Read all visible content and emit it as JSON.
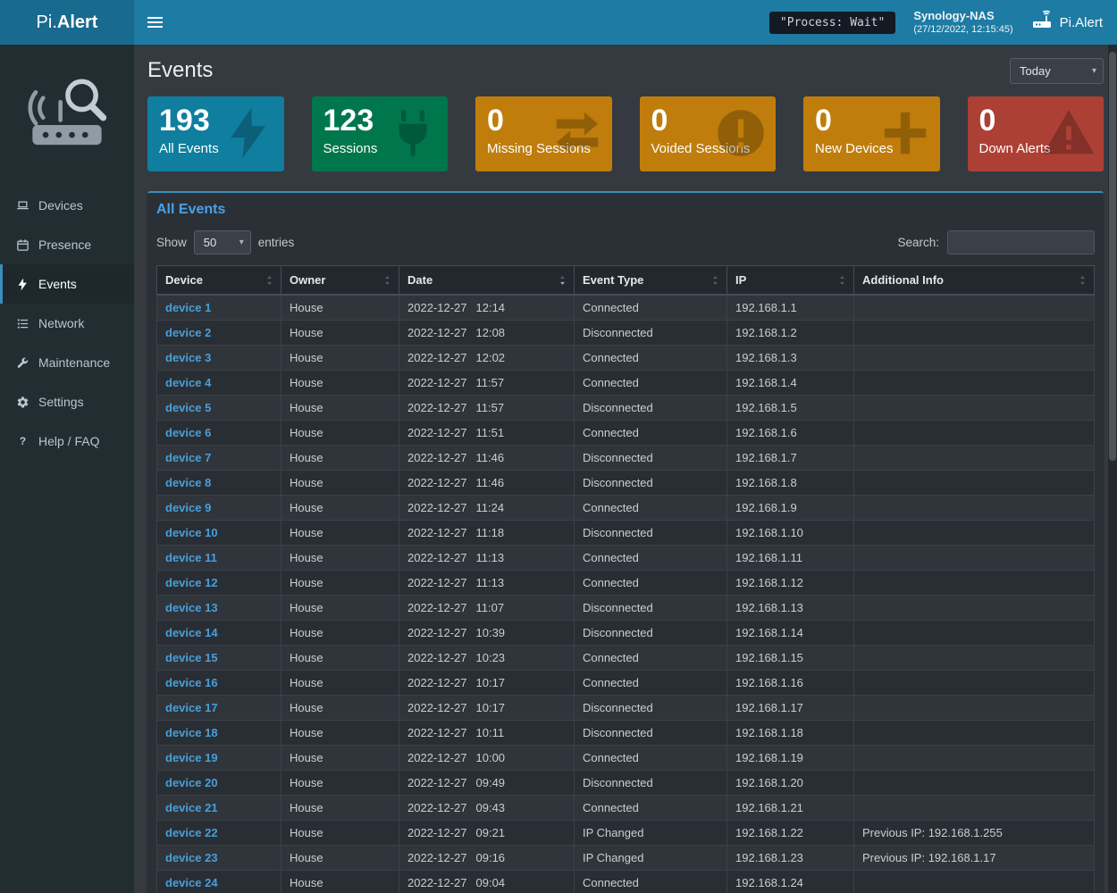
{
  "topbar": {
    "name_light": "Pi.",
    "name_bold": "Alert",
    "process_badge": "\"Process: Wait\"",
    "host_name": "Synology-NAS",
    "host_time": "(27/12/2022, 12:15:45)",
    "right_brand": "Pi.Alert"
  },
  "sidebar": {
    "items": [
      {
        "label": "Devices",
        "icon": "laptop-icon",
        "active": false
      },
      {
        "label": "Presence",
        "icon": "calendar-icon",
        "active": false
      },
      {
        "label": "Events",
        "icon": "bolt-icon",
        "active": true
      },
      {
        "label": "Network",
        "icon": "network-icon",
        "active": false
      },
      {
        "label": "Maintenance",
        "icon": "wrench-icon",
        "active": false
      },
      {
        "label": "Settings",
        "icon": "gear-icon",
        "active": false
      },
      {
        "label": "Help / FAQ",
        "icon": "question-icon",
        "active": false
      }
    ]
  },
  "page": {
    "title": "Events",
    "period_selector": "Today"
  },
  "cards": [
    {
      "value": "193",
      "label": "All Events",
      "color": "#0f7e9f",
      "icon": "bolt-icon"
    },
    {
      "value": "123",
      "label": "Sessions",
      "color": "#00764d",
      "icon": "plug-icon"
    },
    {
      "value": "0",
      "label": "Missing Sessions",
      "color": "#c07d0c",
      "icon": "exchange-icon"
    },
    {
      "value": "0",
      "label": "Voided Sessions",
      "color": "#c07d0c",
      "icon": "alert-circle-icon"
    },
    {
      "value": "0",
      "label": "New Devices",
      "color": "#c07d0c",
      "icon": "plus-icon"
    },
    {
      "value": "0",
      "label": "Down Alerts",
      "color": "#ad4035",
      "icon": "warning-triangle-icon"
    }
  ],
  "panel": {
    "title": "All Events",
    "show_label": "Show",
    "entries_label": "entries",
    "page_size": "50",
    "search_label": "Search:",
    "search_value": ""
  },
  "table": {
    "columns": [
      {
        "label": "Device",
        "sorted": null
      },
      {
        "label": "Owner",
        "sorted": null
      },
      {
        "label": "Date",
        "sorted": "desc"
      },
      {
        "label": "Event Type",
        "sorted": null
      },
      {
        "label": "IP",
        "sorted": null
      },
      {
        "label": "Additional Info",
        "sorted": null
      }
    ],
    "rows": [
      {
        "device": "device 1",
        "owner": "House",
        "date": "2022-12-27",
        "time": "12:14",
        "event": "Connected",
        "ip": "192.168.1.1",
        "info": ""
      },
      {
        "device": "device 2",
        "owner": "House",
        "date": "2022-12-27",
        "time": "12:08",
        "event": "Disconnected",
        "ip": "192.168.1.2",
        "info": ""
      },
      {
        "device": "device 3",
        "owner": "House",
        "date": "2022-12-27",
        "time": "12:02",
        "event": "Connected",
        "ip": "192.168.1.3",
        "info": ""
      },
      {
        "device": "device 4",
        "owner": "House",
        "date": "2022-12-27",
        "time": "11:57",
        "event": "Connected",
        "ip": "192.168.1.4",
        "info": ""
      },
      {
        "device": "device 5",
        "owner": "House",
        "date": "2022-12-27",
        "time": "11:57",
        "event": "Disconnected",
        "ip": "192.168.1.5",
        "info": ""
      },
      {
        "device": "device 6",
        "owner": "House",
        "date": "2022-12-27",
        "time": "11:51",
        "event": "Connected",
        "ip": "192.168.1.6",
        "info": ""
      },
      {
        "device": "device 7",
        "owner": "House",
        "date": "2022-12-27",
        "time": "11:46",
        "event": "Disconnected",
        "ip": "192.168.1.7",
        "info": ""
      },
      {
        "device": "device 8",
        "owner": "House",
        "date": "2022-12-27",
        "time": "11:46",
        "event": "Disconnected",
        "ip": "192.168.1.8",
        "info": ""
      },
      {
        "device": "device 9",
        "owner": "House",
        "date": "2022-12-27",
        "time": "11:24",
        "event": "Connected",
        "ip": "192.168.1.9",
        "info": ""
      },
      {
        "device": "device 10",
        "owner": "House",
        "date": "2022-12-27",
        "time": "11:18",
        "event": "Disconnected",
        "ip": "192.168.1.10",
        "info": ""
      },
      {
        "device": "device 11",
        "owner": "House",
        "date": "2022-12-27",
        "time": "11:13",
        "event": "Connected",
        "ip": "192.168.1.11",
        "info": ""
      },
      {
        "device": "device 12",
        "owner": "House",
        "date": "2022-12-27",
        "time": "11:13",
        "event": "Connected",
        "ip": "192.168.1.12",
        "info": ""
      },
      {
        "device": "device 13",
        "owner": "House",
        "date": "2022-12-27",
        "time": "11:07",
        "event": "Disconnected",
        "ip": "192.168.1.13",
        "info": ""
      },
      {
        "device": "device 14",
        "owner": "House",
        "date": "2022-12-27",
        "time": "10:39",
        "event": "Disconnected",
        "ip": "192.168.1.14",
        "info": ""
      },
      {
        "device": "device 15",
        "owner": "House",
        "date": "2022-12-27",
        "time": "10:23",
        "event": "Connected",
        "ip": "192.168.1.15",
        "info": ""
      },
      {
        "device": "device 16",
        "owner": "House",
        "date": "2022-12-27",
        "time": "10:17",
        "event": "Connected",
        "ip": "192.168.1.16",
        "info": ""
      },
      {
        "device": "device 17",
        "owner": "House",
        "date": "2022-12-27",
        "time": "10:17",
        "event": "Disconnected",
        "ip": "192.168.1.17",
        "info": ""
      },
      {
        "device": "device 18",
        "owner": "House",
        "date": "2022-12-27",
        "time": "10:11",
        "event": "Disconnected",
        "ip": "192.168.1.18",
        "info": ""
      },
      {
        "device": "device 19",
        "owner": "House",
        "date": "2022-12-27",
        "time": "10:00",
        "event": "Connected",
        "ip": "192.168.1.19",
        "info": ""
      },
      {
        "device": "device 20",
        "owner": "House",
        "date": "2022-12-27",
        "time": "09:49",
        "event": "Disconnected",
        "ip": "192.168.1.20",
        "info": ""
      },
      {
        "device": "device 21",
        "owner": "House",
        "date": "2022-12-27",
        "time": "09:43",
        "event": "Connected",
        "ip": "192.168.1.21",
        "info": ""
      },
      {
        "device": "device 22",
        "owner": "House",
        "date": "2022-12-27",
        "time": "09:21",
        "event": "IP Changed",
        "ip": "192.168.1.22",
        "info": "Previous IP: 192.168.1.255"
      },
      {
        "device": "device 23",
        "owner": "House",
        "date": "2022-12-27",
        "time": "09:16",
        "event": "IP Changed",
        "ip": "192.168.1.23",
        "info": "Previous IP: 192.168.1.17"
      },
      {
        "device": "device 24",
        "owner": "House",
        "date": "2022-12-27",
        "time": "09:04",
        "event": "Connected",
        "ip": "192.168.1.24",
        "info": ""
      }
    ]
  }
}
